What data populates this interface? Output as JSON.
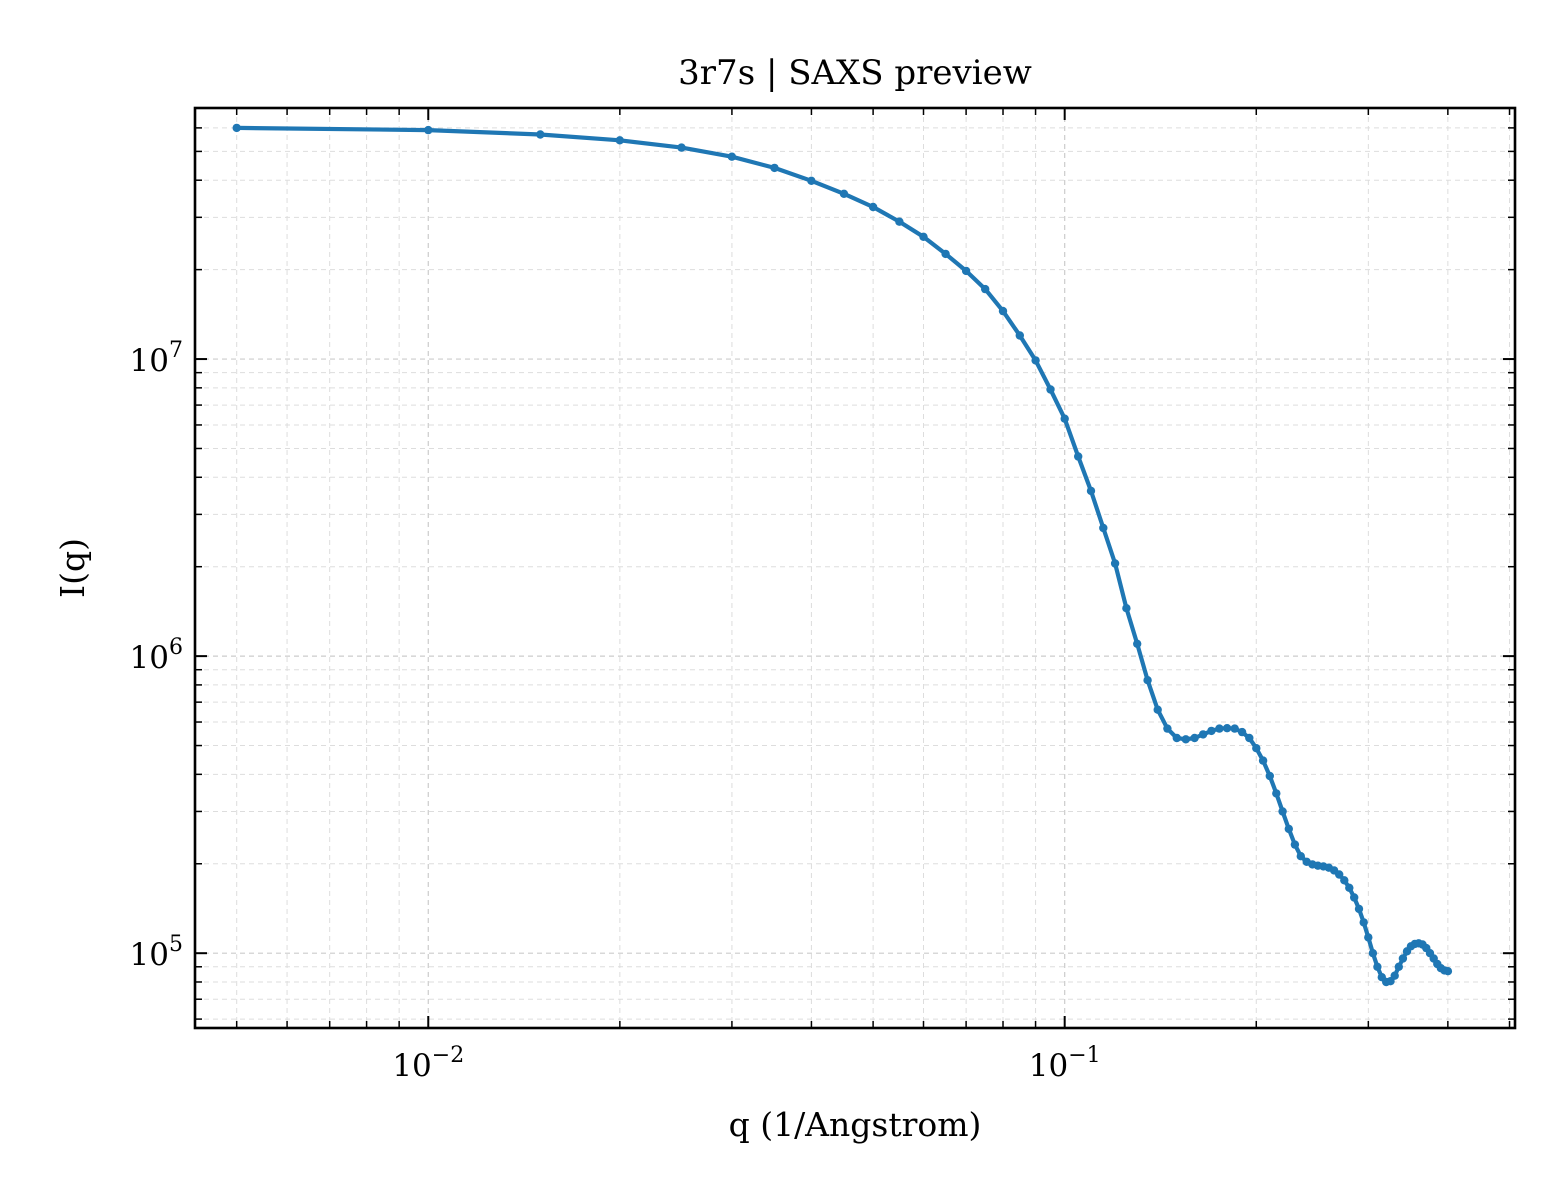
{
  "chart_data": {
    "type": "line",
    "title": "3r7s | SAXS preview",
    "xlabel": "q (1/Angstrom)",
    "ylabel": "I(q)",
    "x_scale": "log",
    "y_scale": "log",
    "xlim": [
      0.0043,
      0.51
    ],
    "ylim": [
      56000,
      70000000
    ],
    "grid": true,
    "series_color": "#1f77b4",
    "x_ticks": [
      {
        "value": 0.01,
        "base": "10",
        "exp": "−2"
      },
      {
        "value": 0.1,
        "base": "10",
        "exp": "−1"
      }
    ],
    "y_ticks": [
      {
        "value": 100000,
        "base": "10",
        "exp": "5"
      },
      {
        "value": 1000000,
        "base": "10",
        "exp": "6"
      },
      {
        "value": 10000000,
        "base": "10",
        "exp": "7"
      }
    ],
    "series": [
      {
        "points": [
          [
            0.005,
            60000000
          ],
          [
            0.01,
            59000000
          ],
          [
            0.015,
            57000000
          ],
          [
            0.02,
            54500000
          ],
          [
            0.025,
            51500000
          ],
          [
            0.03,
            48000000
          ],
          [
            0.035,
            44000000
          ],
          [
            0.04,
            39800000
          ],
          [
            0.045,
            36000000
          ],
          [
            0.05,
            32500000
          ],
          [
            0.055,
            29000000
          ],
          [
            0.06,
            25800000
          ],
          [
            0.065,
            22600000
          ],
          [
            0.07,
            19800000
          ],
          [
            0.075,
            17200000
          ],
          [
            0.08,
            14500000
          ],
          [
            0.085,
            12000000
          ],
          [
            0.09,
            9900000
          ],
          [
            0.095,
            7900000
          ],
          [
            0.1,
            6300000
          ],
          [
            0.105,
            4700000
          ],
          [
            0.11,
            3600000
          ],
          [
            0.115,
            2700000
          ],
          [
            0.12,
            2050000
          ],
          [
            0.125,
            1450000
          ],
          [
            0.13,
            1100000
          ],
          [
            0.135,
            830000
          ],
          [
            0.14,
            660000
          ],
          [
            0.145,
            570000
          ],
          [
            0.15,
            530000
          ],
          [
            0.155,
            525000
          ],
          [
            0.16,
            530000
          ],
          [
            0.165,
            545000
          ],
          [
            0.17,
            560000
          ],
          [
            0.175,
            570000
          ],
          [
            0.18,
            572000
          ],
          [
            0.185,
            570000
          ],
          [
            0.19,
            555000
          ],
          [
            0.195,
            530000
          ],
          [
            0.2,
            490000
          ],
          [
            0.205,
            445000
          ],
          [
            0.21,
            395000
          ],
          [
            0.215,
            345000
          ],
          [
            0.22,
            300000
          ],
          [
            0.225,
            262000
          ],
          [
            0.23,
            232000
          ],
          [
            0.235,
            212000
          ],
          [
            0.24,
            203000
          ],
          [
            0.245,
            199000
          ],
          [
            0.25,
            197000
          ],
          [
            0.255,
            196000
          ],
          [
            0.26,
            194000
          ],
          [
            0.265,
            190000
          ],
          [
            0.27,
            184000
          ],
          [
            0.275,
            176000
          ],
          [
            0.28,
            166000
          ],
          [
            0.285,
            154000
          ],
          [
            0.29,
            141000
          ],
          [
            0.295,
            127000
          ],
          [
            0.3,
            113000
          ],
          [
            0.305,
            100000
          ],
          [
            0.31,
            90000
          ],
          [
            0.315,
            83000
          ],
          [
            0.32,
            80000
          ],
          [
            0.325,
            80500
          ],
          [
            0.33,
            84000
          ],
          [
            0.335,
            90000
          ],
          [
            0.34,
            96000
          ],
          [
            0.345,
            101500
          ],
          [
            0.35,
            105500
          ],
          [
            0.355,
            107500
          ],
          [
            0.36,
            108000
          ],
          [
            0.365,
            107000
          ],
          [
            0.37,
            104000
          ],
          [
            0.375,
            100000
          ],
          [
            0.38,
            96000
          ],
          [
            0.385,
            92000
          ],
          [
            0.39,
            89000
          ],
          [
            0.395,
            87500
          ],
          [
            0.4,
            87000
          ]
        ]
      }
    ]
  }
}
